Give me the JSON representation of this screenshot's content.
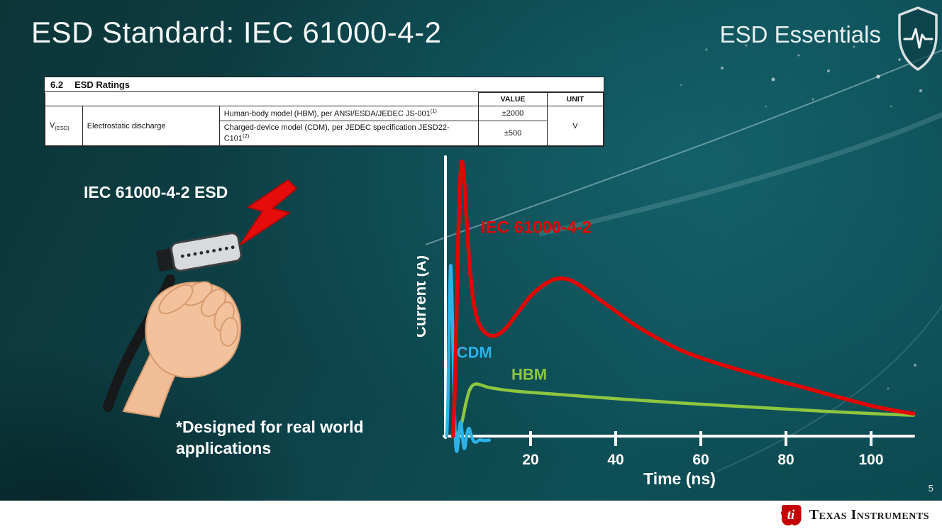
{
  "slide": {
    "title": "ESD Standard: IEC 61000-4-2",
    "brand": "ESD Essentials",
    "page_number": "5"
  },
  "table": {
    "section_no": "6.2",
    "section_title": "ESD Ratings",
    "headers": {
      "value": "VALUE",
      "unit": "UNIT"
    },
    "symbol": "V",
    "symbol_sub": "(ESD)",
    "parameter": "Electrostatic discharge",
    "rows": [
      {
        "desc": "Human-body model (HBM), per ANSI/ESDA/JEDEC JS-001",
        "sup": "(1)",
        "value": "±2000"
      },
      {
        "desc": "Charged-device model (CDM), per JEDEC specification JESD22-C101",
        "sup": "(2)",
        "value": "±500"
      }
    ],
    "unit": "V"
  },
  "illustration": {
    "caption": "IEC 61000-4-2 ESD",
    "note_line1": "*Designed for real world",
    "note_line2": "applications"
  },
  "chart_data": {
    "type": "line",
    "title": "",
    "xlabel": "Time (ns)",
    "ylabel": "Current (A)",
    "xlim": [
      0,
      110
    ],
    "ylim": [
      -0.08,
      1.05
    ],
    "xticks": [
      20,
      40,
      60,
      80,
      100
    ],
    "grid": false,
    "legend_position": "inline-labels",
    "axis_color": "#ffffff",
    "series": [
      {
        "name": "HBM",
        "color": "#8dc63f",
        "width": 4.5,
        "label_x": 15.5,
        "label_y": 0.205,
        "label_size": 22,
        "points": [
          [
            2.5,
            0
          ],
          [
            3.2,
            0.02
          ],
          [
            4.0,
            0.06
          ],
          [
            4.8,
            0.12
          ],
          [
            5.6,
            0.165
          ],
          [
            6.4,
            0.185
          ],
          [
            7.4,
            0.19
          ],
          [
            8.6,
            0.185
          ],
          [
            10,
            0.178
          ],
          [
            13,
            0.17
          ],
          [
            17,
            0.163
          ],
          [
            22,
            0.157
          ],
          [
            28,
            0.15
          ],
          [
            35,
            0.142
          ],
          [
            45,
            0.131
          ],
          [
            55,
            0.121
          ],
          [
            65,
            0.112
          ],
          [
            75,
            0.103
          ],
          [
            85,
            0.094
          ],
          [
            95,
            0.086
          ],
          [
            103,
            0.08
          ],
          [
            110,
            0.076
          ]
        ]
      },
      {
        "name": "CDM",
        "color": "#2bb3e8",
        "width": 4.5,
        "label_x": 2.6,
        "label_y": 0.285,
        "label_size": 22,
        "points": [
          [
            0.3,
            0
          ],
          [
            0.6,
            0.14
          ],
          [
            0.9,
            0.44
          ],
          [
            1.2,
            0.62
          ],
          [
            1.5,
            0.52
          ],
          [
            1.8,
            0.3
          ],
          [
            2.1,
            0.1
          ],
          [
            2.4,
            -0.03
          ],
          [
            2.7,
            -0.055
          ],
          [
            3.0,
            -0.02
          ],
          [
            3.3,
            0.035
          ],
          [
            3.6,
            0.05
          ],
          [
            3.9,
            0.015
          ],
          [
            4.2,
            -0.03
          ],
          [
            4.5,
            -0.045
          ],
          [
            4.8,
            -0.018
          ],
          [
            5.2,
            0.018
          ],
          [
            5.6,
            0.028
          ],
          [
            6.0,
            0.005
          ],
          [
            6.6,
            -0.018
          ],
          [
            7.2,
            -0.022
          ],
          [
            8.0,
            -0.014
          ],
          [
            9.0,
            -0.016
          ],
          [
            10.3,
            -0.015
          ]
        ]
      },
      {
        "name": "IEC 61000-4-2",
        "color": "#e10600",
        "width": 5.5,
        "label_x": 8.3,
        "label_y": 0.74,
        "label_size": 24,
        "points": [
          [
            1.8,
            0
          ],
          [
            2.2,
            0.17
          ],
          [
            2.6,
            0.44
          ],
          [
            3.0,
            0.72
          ],
          [
            3.4,
            0.92
          ],
          [
            3.9,
            1.0
          ],
          [
            4.4,
            0.93
          ],
          [
            5.0,
            0.78
          ],
          [
            5.8,
            0.6
          ],
          [
            6.8,
            0.47
          ],
          [
            8.0,
            0.405
          ],
          [
            9.5,
            0.375
          ],
          [
            11.5,
            0.365
          ],
          [
            14,
            0.39
          ],
          [
            17,
            0.45
          ],
          [
            20,
            0.51
          ],
          [
            23,
            0.55
          ],
          [
            26,
            0.573
          ],
          [
            29,
            0.57
          ],
          [
            32,
            0.545
          ],
          [
            36,
            0.5
          ],
          [
            40,
            0.455
          ],
          [
            45,
            0.4
          ],
          [
            50,
            0.355
          ],
          [
            55,
            0.315
          ],
          [
            60,
            0.285
          ],
          [
            66,
            0.255
          ],
          [
            72,
            0.228
          ],
          [
            78,
            0.202
          ],
          [
            84,
            0.178
          ],
          [
            90,
            0.152
          ],
          [
            96,
            0.127
          ],
          [
            101,
            0.107
          ],
          [
            106,
            0.092
          ],
          [
            110,
            0.082
          ]
        ]
      }
    ]
  },
  "footer": {
    "brand": "Texas Instruments"
  }
}
